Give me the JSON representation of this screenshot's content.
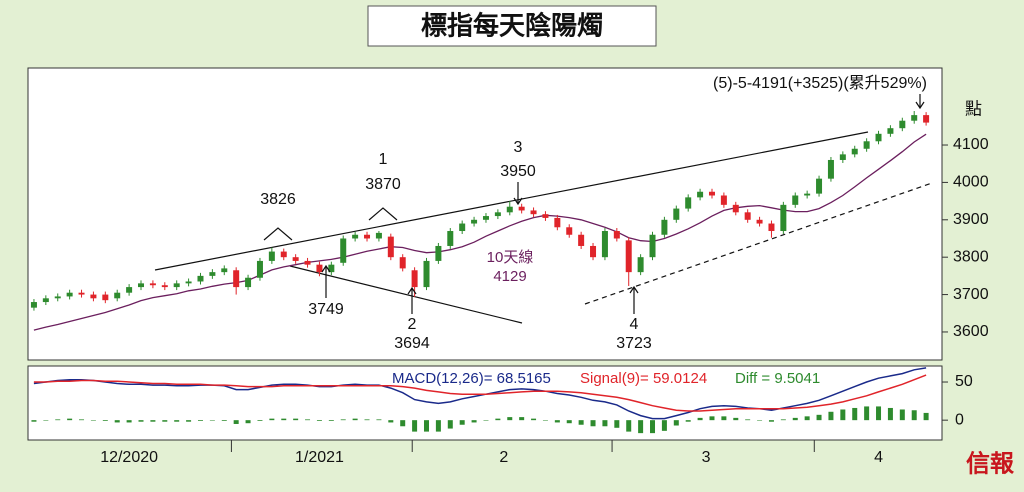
{
  "chart_data": {
    "type": "candlestick",
    "title": "標指每天陰陽燭",
    "y_label": "點",
    "brand": "信報",
    "up_color": "#2e8b2e",
    "down_color": "#e0242a",
    "ylim": [
      3525,
      4306
    ],
    "yticks": [
      3600,
      3700,
      3800,
      3900,
      4000,
      4100
    ],
    "xticks": [
      {
        "value": 8,
        "label": "12/2020"
      },
      {
        "value": 24,
        "label": "1/2021"
      },
      {
        "value": 39.5,
        "label": "2"
      },
      {
        "value": 56.5,
        "label": "3"
      },
      {
        "value": 71,
        "label": "4"
      }
    ],
    "month_boundaries": [
      16.6,
      31.8,
      48.6,
      65.6
    ],
    "open": [
      3665,
      3680,
      3690,
      3695,
      3705,
      3700,
      3700,
      3690,
      3705,
      3720,
      3730,
      3725,
      3720,
      3730,
      3735,
      3750,
      3760,
      3765,
      3720,
      3745,
      3790,
      3815,
      3800,
      3790,
      3780,
      3760,
      3785,
      3850,
      3860,
      3850,
      3855,
      3800,
      3765,
      3720,
      3790,
      3830,
      3870,
      3890,
      3900,
      3910,
      3920,
      3935,
      3925,
      3915,
      3905,
      3880,
      3860,
      3830,
      3800,
      3870,
      3845,
      3760,
      3800,
      3860,
      3900,
      3930,
      3960,
      3975,
      3965,
      3940,
      3920,
      3900,
      3890,
      3870,
      3940,
      3965,
      3970,
      4010,
      4060,
      4075,
      4090,
      4110,
      4130,
      4145,
      4165,
      4180
    ],
    "high": [
      3688,
      3698,
      3703,
      3713,
      3713,
      3708,
      3708,
      3713,
      3728,
      3738,
      3738,
      3733,
      3738,
      3743,
      3758,
      3768,
      3778,
      3773,
      3753,
      3798,
      3826,
      3823,
      3808,
      3798,
      3788,
      3788,
      3858,
      3868,
      3868,
      3870,
      3863,
      3808,
      3773,
      3798,
      3838,
      3878,
      3898,
      3908,
      3918,
      3928,
      3950,
      3943,
      3933,
      3923,
      3913,
      3888,
      3868,
      3838,
      3878,
      3878,
      3853,
      3808,
      3868,
      3908,
      3938,
      3968,
      3983,
      3983,
      3973,
      3948,
      3928,
      3908,
      3898,
      3948,
      3973,
      3978,
      4018,
      4068,
      4083,
      4098,
      4118,
      4138,
      4153,
      4173,
      4191,
      4188
    ],
    "low": [
      3657,
      3672,
      3682,
      3687,
      3692,
      3682,
      3677,
      3682,
      3697,
      3712,
      3717,
      3712,
      3712,
      3722,
      3727,
      3742,
      3752,
      3700,
      3712,
      3737,
      3782,
      3792,
      3782,
      3772,
      3749,
      3752,
      3777,
      3842,
      3842,
      3842,
      3792,
      3762,
      3694,
      3712,
      3782,
      3822,
      3862,
      3882,
      3892,
      3902,
      3912,
      3917,
      3907,
      3897,
      3872,
      3852,
      3822,
      3792,
      3792,
      3842,
      3723,
      3752,
      3792,
      3852,
      3892,
      3922,
      3952,
      3957,
      3932,
      3912,
      3892,
      3882,
      3852,
      3862,
      3932,
      3957,
      3962,
      4002,
      4052,
      4067,
      4082,
      4102,
      4122,
      4137,
      4157,
      4152
    ],
    "close": [
      3680,
      3690,
      3695,
      3705,
      3700,
      3690,
      3685,
      3705,
      3720,
      3730,
      3725,
      3720,
      3730,
      3735,
      3750,
      3760,
      3770,
      3720,
      3745,
      3790,
      3815,
      3800,
      3790,
      3780,
      3760,
      3780,
      3850,
      3860,
      3850,
      3865,
      3800,
      3770,
      3720,
      3790,
      3830,
      3870,
      3890,
      3900,
      3910,
      3920,
      3935,
      3925,
      3915,
      3905,
      3880,
      3860,
      3830,
      3800,
      3870,
      3850,
      3760,
      3800,
      3860,
      3900,
      3930,
      3960,
      3975,
      3965,
      3940,
      3920,
      3900,
      3890,
      3870,
      3940,
      3965,
      3970,
      4010,
      4060,
      4075,
      4090,
      4110,
      4130,
      4145,
      4165,
      4180,
      4160
    ],
    "ma": {
      "label": "10天線",
      "value_label": "4129",
      "color": "#6b1f5e",
      "values": [
        3605,
        3613,
        3620,
        3628,
        3636,
        3644,
        3652,
        3662,
        3672,
        3684,
        3692,
        3697,
        3702,
        3710,
        3715,
        3722,
        3728,
        3732,
        3738,
        3752,
        3766,
        3774,
        3780,
        3786,
        3790,
        3794,
        3800,
        3808,
        3816,
        3822,
        3828,
        3826,
        3818,
        3812,
        3814,
        3820,
        3828,
        3840,
        3856,
        3870,
        3884,
        3896,
        3906,
        3912,
        3910,
        3906,
        3900,
        3890,
        3880,
        3868,
        3852,
        3844,
        3842,
        3850,
        3862,
        3876,
        3892,
        3910,
        3925,
        3932,
        3936,
        3938,
        3932,
        3926,
        3922,
        3922,
        3930,
        3946,
        3965,
        3988,
        4012,
        4035,
        4058,
        4082,
        4108,
        4129
      ]
    },
    "annotations": [
      "3826",
      "1",
      "3870",
      "3",
      "3950",
      "3749",
      "2",
      "3694",
      "4",
      "3723",
      "(5)-5-4191(+3525)(累升529%)"
    ],
    "macd": {
      "ylim": [
        -26,
        71
      ],
      "yticks": [
        0,
        50
      ],
      "lines": [
        {
          "name": "MACD(12,26)= 68.5165",
          "color": "#1a2a8a",
          "values": [
            48,
            50,
            52,
            53,
            53,
            52,
            50,
            48,
            47,
            47,
            46,
            46,
            45,
            45,
            46,
            46,
            45,
            40,
            40,
            43,
            46,
            47,
            47,
            46,
            44,
            44,
            46,
            47,
            46,
            46,
            42,
            36,
            27,
            24,
            22,
            24,
            28,
            31,
            34,
            37,
            40,
            41,
            40,
            38,
            35,
            33,
            30,
            26,
            24,
            20,
            12,
            6,
            2,
            2,
            6,
            10,
            15,
            18,
            19,
            18,
            16,
            15,
            13,
            16,
            19,
            22,
            26,
            32,
            38,
            44,
            50,
            55,
            58,
            61,
            66,
            68.5165
          ]
        },
        {
          "name": "Signal(9)= 59.0124",
          "color": "#e0242a",
          "values": [
            50,
            50,
            51,
            51,
            52,
            52,
            51,
            51,
            50,
            49,
            48,
            48,
            47,
            47,
            47,
            46,
            46,
            45,
            44,
            44,
            44,
            45,
            45,
            45,
            45,
            45,
            45,
            45,
            45,
            45,
            45,
            44,
            42,
            39,
            37,
            35,
            34,
            34,
            34,
            35,
            36,
            37,
            38,
            38,
            38,
            37,
            36,
            34,
            32,
            30,
            27,
            23,
            19,
            16,
            13,
            12,
            12,
            13,
            14,
            15,
            15,
            15,
            15,
            15,
            16,
            17,
            19,
            21,
            24,
            28,
            32,
            37,
            42,
            47,
            53,
            59.0124
          ]
        }
      ],
      "diff": {
        "name": "Diff = 9.5041",
        "color": "#2e8b2e",
        "values": [
          -2,
          0,
          1,
          2,
          1,
          0,
          -1,
          -3,
          -3,
          -2,
          -2,
          -2,
          -2,
          -2,
          -1,
          0,
          -1,
          -5,
          -4,
          -1,
          2,
          2,
          2,
          1,
          -1,
          -1,
          1,
          2,
          1,
          1,
          -3,
          -8,
          -15,
          -15,
          -15,
          -11,
          -6,
          -3,
          0,
          2,
          4,
          4,
          2,
          0,
          -3,
          -4,
          -6,
          -8,
          -8,
          -10,
          -15,
          -17,
          -17,
          -14,
          -7,
          -2,
          3,
          5,
          5,
          3,
          1,
          0,
          -2,
          1,
          3,
          5,
          7,
          11,
          14,
          16,
          18,
          18,
          16,
          14,
          13,
          9.5041
        ]
      }
    }
  }
}
